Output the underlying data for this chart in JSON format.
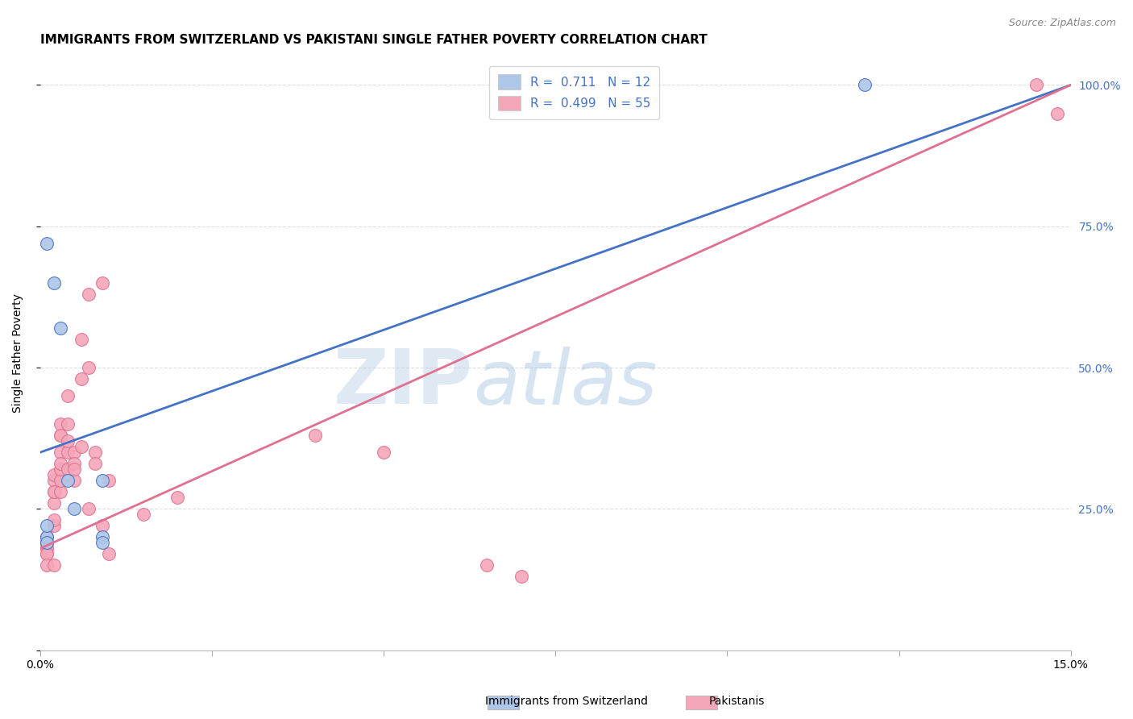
{
  "title": "IMMIGRANTS FROM SWITZERLAND VS PAKISTANI SINGLE FATHER POVERTY CORRELATION CHART",
  "source": "Source: ZipAtlas.com",
  "ylabel": "Single Father Poverty",
  "x_min": 0.0,
  "x_max": 0.15,
  "y_min": 0.0,
  "y_max": 1.05,
  "y_ticks": [
    0.0,
    0.25,
    0.5,
    0.75,
    1.0
  ],
  "y_tick_labels": [
    "",
    "25.0%",
    "50.0%",
    "75.0%",
    "100.0%"
  ],
  "grid_color": "#dddddd",
  "background_color": "#ffffff",
  "blue_r": 0.711,
  "blue_n": 12,
  "pink_r": 0.499,
  "pink_n": 55,
  "blue_dot_color": "#aec6e8",
  "pink_dot_color": "#f4a7b9",
  "blue_line_color": "#4472c4",
  "pink_line_color": "#e07090",
  "blue_line_y0": 0.35,
  "blue_line_y1": 1.0,
  "pink_line_y0": 0.18,
  "pink_line_y1": 1.0,
  "blue_scatter_x": [
    0.001,
    0.001,
    0.001,
    0.002,
    0.003,
    0.004,
    0.005,
    0.009,
    0.009,
    0.009,
    0.12,
    0.001
  ],
  "blue_scatter_y": [
    0.2,
    0.22,
    0.19,
    0.65,
    0.57,
    0.3,
    0.25,
    0.3,
    0.2,
    0.19,
    1.0,
    0.72
  ],
  "pink_scatter_x": [
    0.001,
    0.001,
    0.001,
    0.001,
    0.001,
    0.001,
    0.001,
    0.001,
    0.001,
    0.001,
    0.002,
    0.002,
    0.002,
    0.002,
    0.002,
    0.002,
    0.002,
    0.002,
    0.003,
    0.003,
    0.003,
    0.003,
    0.003,
    0.003,
    0.003,
    0.003,
    0.004,
    0.004,
    0.004,
    0.004,
    0.004,
    0.005,
    0.005,
    0.005,
    0.005,
    0.006,
    0.006,
    0.006,
    0.007,
    0.007,
    0.007,
    0.008,
    0.008,
    0.009,
    0.009,
    0.01,
    0.01,
    0.015,
    0.02,
    0.04,
    0.05,
    0.065,
    0.07,
    0.145,
    0.148
  ],
  "pink_scatter_y": [
    0.19,
    0.19,
    0.2,
    0.19,
    0.18,
    0.18,
    0.17,
    0.17,
    0.15,
    0.19,
    0.22,
    0.23,
    0.26,
    0.28,
    0.3,
    0.31,
    0.28,
    0.15,
    0.28,
    0.3,
    0.32,
    0.35,
    0.38,
    0.4,
    0.38,
    0.33,
    0.32,
    0.35,
    0.37,
    0.4,
    0.45,
    0.3,
    0.35,
    0.33,
    0.32,
    0.48,
    0.55,
    0.36,
    0.63,
    0.5,
    0.25,
    0.35,
    0.33,
    0.65,
    0.22,
    0.3,
    0.17,
    0.24,
    0.27,
    0.38,
    0.35,
    0.15,
    0.13,
    1.0,
    0.95
  ],
  "watermark_zip": "ZIP",
  "watermark_atlas": "atlas",
  "legend_entries": [
    "Immigrants from Switzerland",
    "Pakistanis"
  ],
  "title_fontsize": 11,
  "axis_label_fontsize": 10,
  "tick_fontsize": 10,
  "right_tick_color": "#4472c4",
  "x_tick_positions": [
    0.0,
    0.025,
    0.05,
    0.075,
    0.1,
    0.125,
    0.15
  ],
  "x_end_labels": {
    "0.0": "0.0%",
    "0.15": "15.0%"
  }
}
